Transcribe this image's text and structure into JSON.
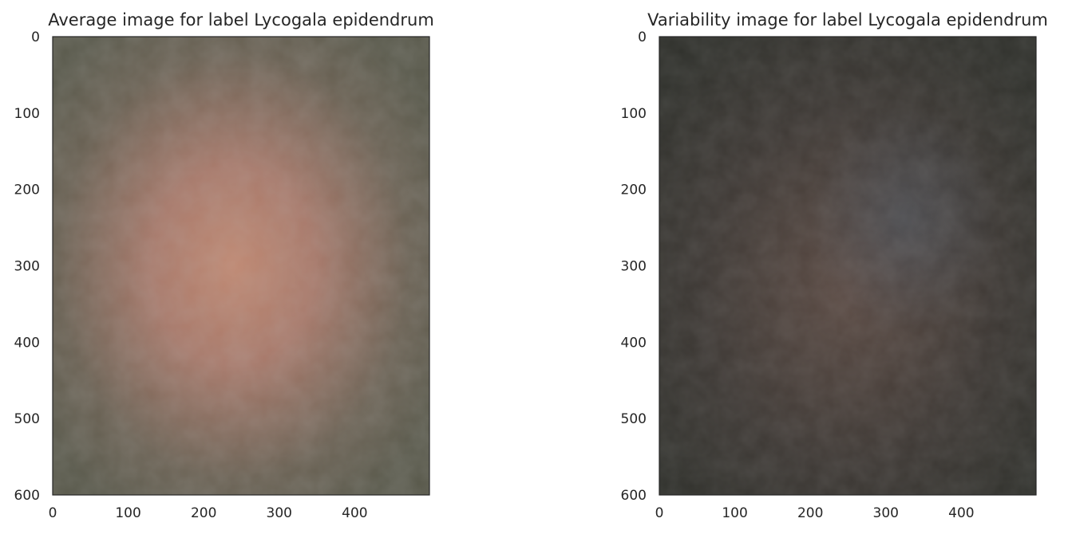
{
  "chart_data": [
    {
      "type": "heatmap",
      "title": "Average image for label Lycogala epidendrum",
      "xlim": [
        0,
        499
      ],
      "ylim": [
        600,
        0
      ],
      "xticks": [
        0,
        100,
        200,
        300,
        400
      ],
      "yticks": [
        0,
        100,
        200,
        300,
        400,
        500,
        600
      ],
      "grid": false,
      "colors": {
        "base": "#6a6153",
        "edge": "#58584a",
        "center": "#a8796a",
        "hot": "#c08770"
      }
    },
    {
      "type": "heatmap",
      "title": "Variability image for label Lycogala epidendrum",
      "xlim": [
        0,
        499
      ],
      "ylim": [
        600,
        0
      ],
      "xticks": [
        0,
        100,
        200,
        300,
        400
      ],
      "yticks": [
        0,
        100,
        200,
        300,
        400,
        500,
        600
      ],
      "grid": false,
      "colors": {
        "base": "#3d3834",
        "edge": "#2f302b",
        "center": "#5b4a43",
        "accent": "#4f5863"
      }
    }
  ]
}
